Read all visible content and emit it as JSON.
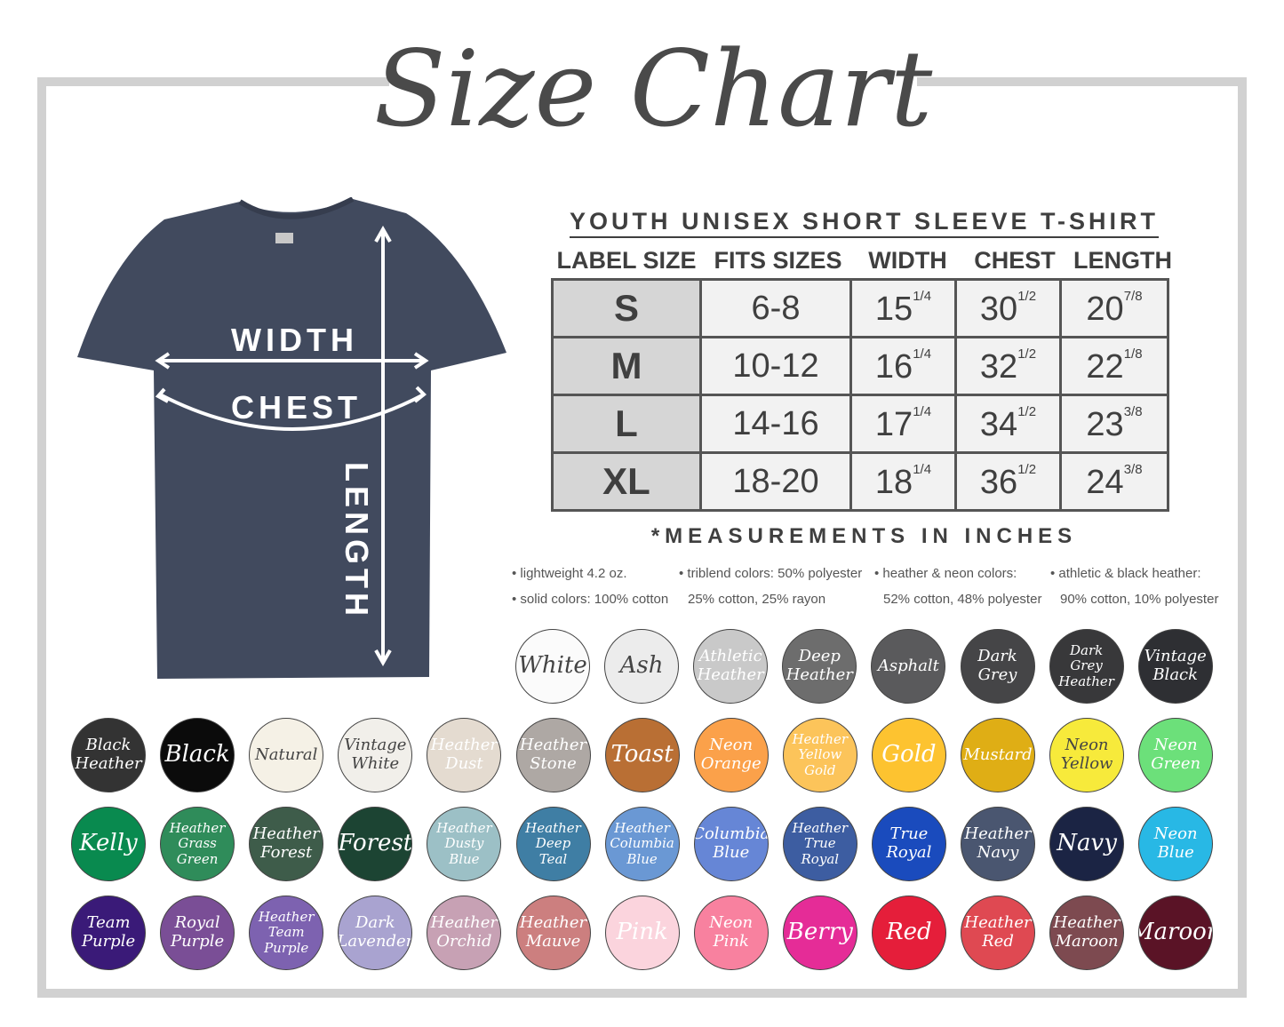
{
  "title": "Size Chart",
  "shirt": {
    "color": "#414a5e",
    "labels": {
      "width": "WIDTH",
      "chest": "CHEST",
      "length": "LENGTH"
    }
  },
  "table": {
    "heading": "YOUTH UNISEX SHORT SLEEVE T-SHIRT",
    "columns": [
      "LABEL SIZE",
      "FITS SIZES",
      "WIDTH",
      "CHEST",
      "LENGTH"
    ],
    "rows": [
      {
        "size": "S",
        "fits": "6-8",
        "width": [
          "15",
          "1/4"
        ],
        "chest": [
          "30",
          "1/2"
        ],
        "length": [
          "20",
          "7/8"
        ]
      },
      {
        "size": "M",
        "fits": "10-12",
        "width": [
          "16",
          "1/4"
        ],
        "chest": [
          "32",
          "1/2"
        ],
        "length": [
          "22",
          "1/8"
        ]
      },
      {
        "size": "L",
        "fits": "14-16",
        "width": [
          "17",
          "1/4"
        ],
        "chest": [
          "34",
          "1/2"
        ],
        "length": [
          "23",
          "3/8"
        ]
      },
      {
        "size": "XL",
        "fits": "18-20",
        "width": [
          "18",
          "1/4"
        ],
        "chest": [
          "36",
          "1/2"
        ],
        "length": [
          "24",
          "3/8"
        ]
      }
    ],
    "note": "*MEASUREMENTS IN INCHES"
  },
  "fabric": [
    [
      "• lightweight 4.2 oz.",
      "• solid colors: 100% cotton"
    ],
    [
      "• triblend colors: 50% polyester",
      "25% cotton, 25% rayon"
    ],
    [
      "• heather & neon colors:",
      "52% cotton, 48% polyester"
    ],
    [
      "• athletic & black heather:",
      "90% cotton, 10% polyester"
    ]
  ],
  "swatches": [
    [
      {
        "name": "White",
        "color": "#fbfbfb",
        "text": "#444"
      },
      {
        "name": "Ash",
        "color": "#ececec",
        "text": "#444"
      },
      {
        "name": "Athletic Heather",
        "color": "#c9c9c9",
        "text": "#fff"
      },
      {
        "name": "Deep Heather",
        "color": "#6d6d6d",
        "text": "#fff"
      },
      {
        "name": "Asphalt",
        "color": "#5a5a5c",
        "text": "#fff"
      },
      {
        "name": "Dark Grey",
        "color": "#454547",
        "text": "#fff"
      },
      {
        "name": "Dark Grey Heather",
        "color": "#38383a",
        "text": "#fff"
      },
      {
        "name": "Vintage Black",
        "color": "#2e2f33",
        "text": "#fff"
      }
    ],
    [
      {
        "name": "Black Heather",
        "color": "#333333",
        "text": "#fff"
      },
      {
        "name": "Black",
        "color": "#0b0b0b",
        "text": "#fff"
      },
      {
        "name": "Natural",
        "color": "#f5f1e6",
        "text": "#444"
      },
      {
        "name": "Vintage White",
        "color": "#f1efea",
        "text": "#444"
      },
      {
        "name": "Heather Dust",
        "color": "#e4dbd0",
        "text": "#fff"
      },
      {
        "name": "Heather Stone",
        "color": "#aea8a4",
        "text": "#fff"
      },
      {
        "name": "Toast",
        "color": "#b96f34",
        "text": "#fff"
      },
      {
        "name": "Neon Orange",
        "color": "#fba14a",
        "text": "#fff"
      },
      {
        "name": "Heather Yellow Gold",
        "color": "#fcc45a",
        "text": "#fff"
      },
      {
        "name": "Gold",
        "color": "#fdc330",
        "text": "#fff"
      },
      {
        "name": "Mustard",
        "color": "#dfae15",
        "text": "#fff"
      },
      {
        "name": "Neon Yellow",
        "color": "#f7ea3b",
        "text": "#444"
      },
      {
        "name": "Neon Green",
        "color": "#6ce07a",
        "text": "#fff"
      }
    ],
    [
      {
        "name": "Kelly",
        "color": "#098a4f",
        "text": "#fff"
      },
      {
        "name": "Heather Grass Green",
        "color": "#2f8c5a",
        "text": "#fff"
      },
      {
        "name": "Heather Forest",
        "color": "#3e5c4a",
        "text": "#fff"
      },
      {
        "name": "Forest",
        "color": "#1c4433",
        "text": "#fff"
      },
      {
        "name": "Heather Dusty Blue",
        "color": "#9cc0c6",
        "text": "#fff"
      },
      {
        "name": "Heather Deep Teal",
        "color": "#3f7ea4",
        "text": "#fff"
      },
      {
        "name": "Heather Columbia Blue",
        "color": "#6a98d4",
        "text": "#fff"
      },
      {
        "name": "Columbia Blue",
        "color": "#6686d6",
        "text": "#fff"
      },
      {
        "name": "Heather True Royal",
        "color": "#3d5da1",
        "text": "#fff"
      },
      {
        "name": "True Royal",
        "color": "#1a4bbd",
        "text": "#fff"
      },
      {
        "name": "Heather Navy",
        "color": "#4a5670",
        "text": "#fff"
      },
      {
        "name": "Navy",
        "color": "#1b2444",
        "text": "#fff"
      },
      {
        "name": "Neon Blue",
        "color": "#28b8e5",
        "text": "#fff"
      }
    ],
    [
      {
        "name": "Team Purple",
        "color": "#3a1a78",
        "text": "#fff"
      },
      {
        "name": "Royal Purple",
        "color": "#7a4e96",
        "text": "#fff"
      },
      {
        "name": "Heather Team Purple",
        "color": "#7d62b0",
        "text": "#fff"
      },
      {
        "name": "Dark Lavender",
        "color": "#a9a3d0",
        "text": "#fff"
      },
      {
        "name": "Heather Orchid",
        "color": "#c7a1b4",
        "text": "#fff"
      },
      {
        "name": "Heather Mauve",
        "color": "#cc7f7f",
        "text": "#fff"
      },
      {
        "name": "Pink",
        "color": "#fbd4dd",
        "text": "#fff"
      },
      {
        "name": "Neon Pink",
        "color": "#f8819f",
        "text": "#fff"
      },
      {
        "name": "Berry",
        "color": "#e52c97",
        "text": "#fff"
      },
      {
        "name": "Red",
        "color": "#e51e3a",
        "text": "#fff"
      },
      {
        "name": "Heather Red",
        "color": "#df4952",
        "text": "#fff"
      },
      {
        "name": "Heather Maroon",
        "color": "#7d4a50",
        "text": "#fff"
      },
      {
        "name": "Maroon",
        "color": "#5a1326",
        "text": "#fff"
      }
    ]
  ]
}
